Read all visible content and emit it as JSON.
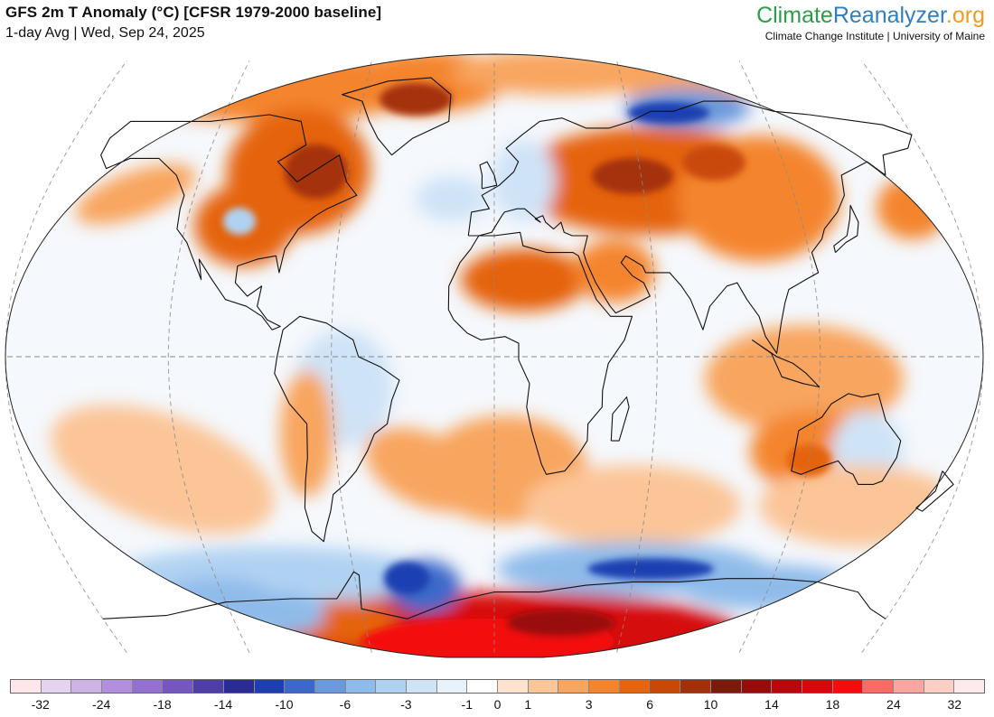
{
  "header": {
    "title": "GFS 2m T Anomaly (°C) [CFSR 1979-2000 baseline]",
    "subtitle": "1-day Avg | Wed, Sep 24, 2025"
  },
  "brand": {
    "part1": "Climate",
    "part2": "Reanalyzer",
    "part3": ".org",
    "color1": "#2e9c4a",
    "color2": "#2f7fbf",
    "color3": "#f39a1e",
    "tagline": "Climate Change Institute | University of Maine"
  },
  "map": {
    "projection": "Winkel Tripel",
    "ocean_base_color": "#f5f8fc",
    "graticule_color": "#888888",
    "coastline_color": "#111111"
  },
  "legend": {
    "colors": [
      "#fde7ea",
      "#e6d3ef",
      "#cdb2e6",
      "#b28fdc",
      "#9470d0",
      "#7657c1",
      "#4f3ea8",
      "#2a2b95",
      "#1e3fb1",
      "#3c69c9",
      "#6999dc",
      "#8fbbea",
      "#b0d2f2",
      "#cfe3f7",
      "#e8f2fb",
      "#ffffff",
      "#fde3cf",
      "#fbc597",
      "#f8a55f",
      "#f4852e",
      "#e5640d",
      "#c94807",
      "#a4300a",
      "#7b1a0b",
      "#990b0b",
      "#b9070b",
      "#d6080c",
      "#f40d0d",
      "#fa6b66",
      "#f8a69f",
      "#fbcfc4",
      "#fdeaea"
    ],
    "labels": [
      {
        "text": "-32",
        "index": 1
      },
      {
        "text": "-24",
        "index": 3
      },
      {
        "text": "-18",
        "index": 5
      },
      {
        "text": "-14",
        "index": 7
      },
      {
        "text": "-10",
        "index": 9
      },
      {
        "text": "-6",
        "index": 11
      },
      {
        "text": "-3",
        "index": 13
      },
      {
        "text": "-1",
        "index": 15
      },
      {
        "text": "0",
        "index": 16
      },
      {
        "text": "1",
        "index": 17
      },
      {
        "text": "3",
        "index": 19
      },
      {
        "text": "6",
        "index": 21
      },
      {
        "text": "10",
        "index": 23
      },
      {
        "text": "14",
        "index": 25
      },
      {
        "text": "18",
        "index": 27
      },
      {
        "text": "24",
        "index": 29
      },
      {
        "text": "32",
        "index": 31
      }
    ]
  }
}
